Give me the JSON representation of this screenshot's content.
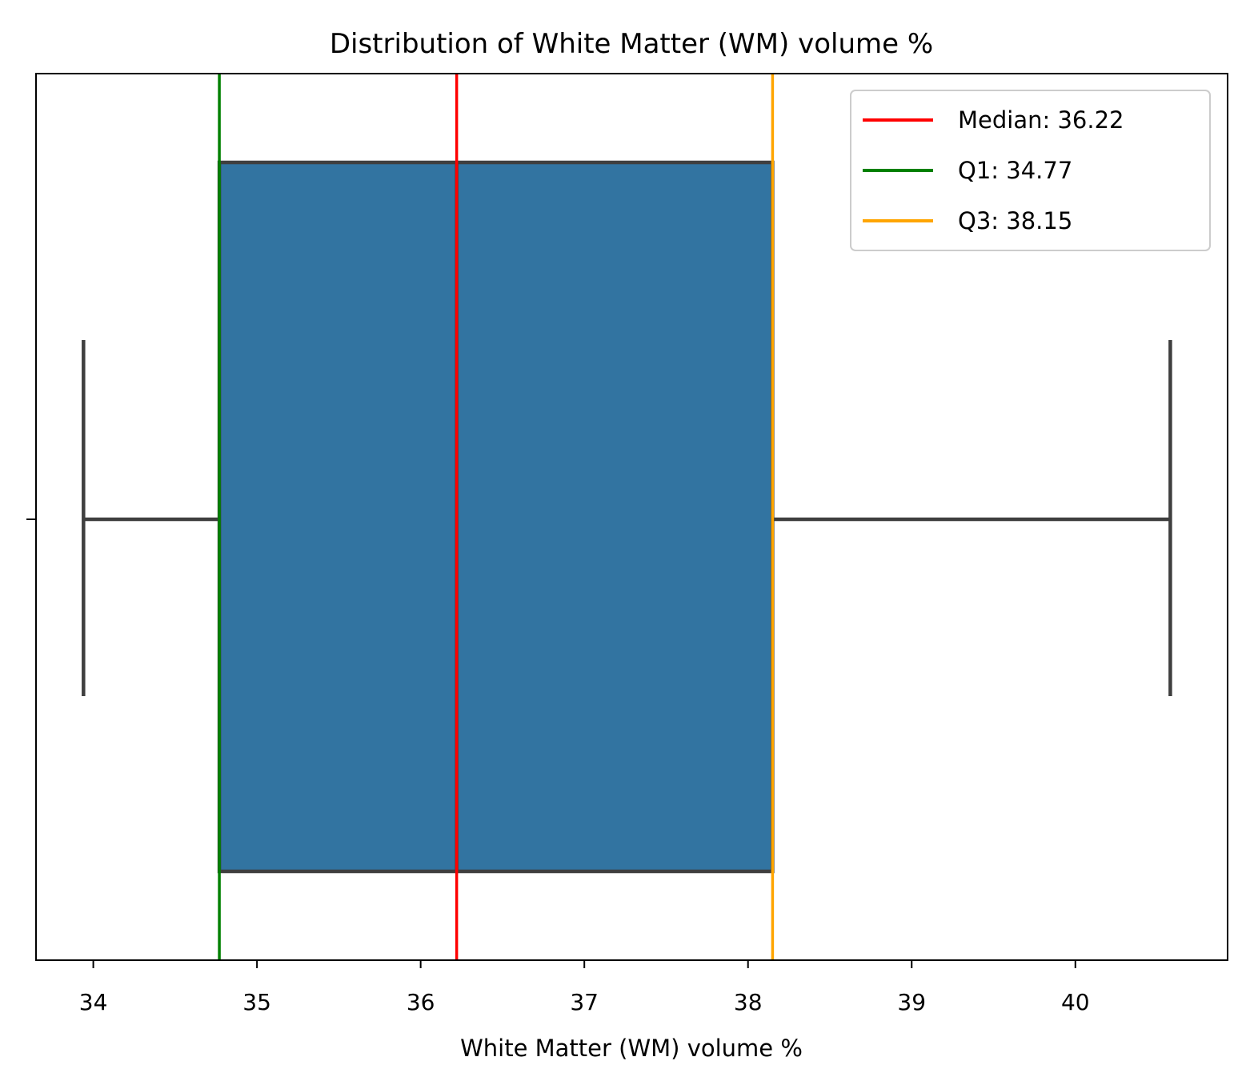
{
  "chart_data": {
    "type": "box",
    "title": "Distribution of White Matter (WM) volume %",
    "xlabel": "White Matter (WM) volume %",
    "ylabel": "",
    "xlim": [
      33.65,
      40.93
    ],
    "xticks": [
      34,
      35,
      36,
      37,
      38,
      39,
      40
    ],
    "grid": false,
    "legend_placement": "top-right",
    "box": {
      "whisker_low": 33.94,
      "q1": 34.77,
      "median": 36.22,
      "q3": 38.15,
      "whisker_high": 40.58,
      "fill_color": "#3274a1",
      "line_color": "#3f3f3f"
    },
    "reference_lines": [
      {
        "label": "Median: 36.22",
        "value": 36.22,
        "color": "#ff0000"
      },
      {
        "label": "Q1: 34.77",
        "value": 34.77,
        "color": "#008000"
      },
      {
        "label": "Q3: 38.15",
        "value": 38.15,
        "color": "#ffa500"
      }
    ]
  }
}
